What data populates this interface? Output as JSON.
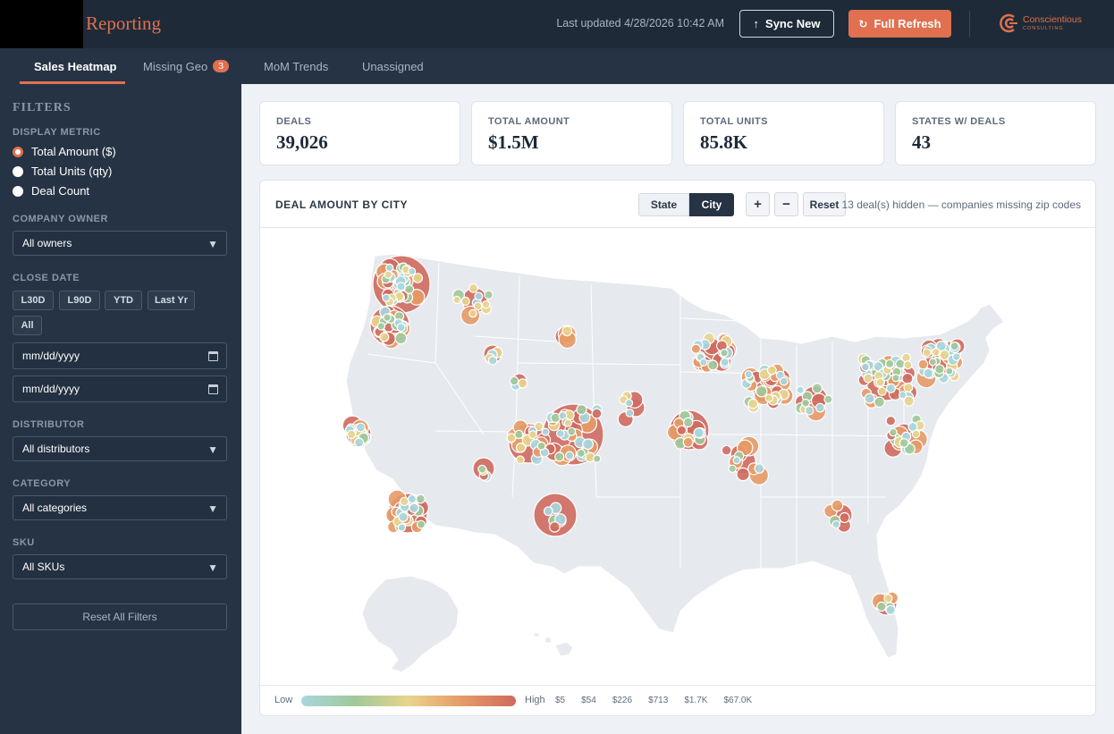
{
  "header": {
    "app_title": "Reporting",
    "last_updated": "Last updated 4/28/2026 10:42 AM",
    "sync_label": "Sync New",
    "sync_icon": "arrow-up-icon",
    "refresh_label": "Full Refresh",
    "refresh_icon": "refresh-icon",
    "brand_name": "Conscientious",
    "brand_sub": "CONSULTING"
  },
  "tabs": [
    {
      "label": "Sales Heatmap",
      "active": true
    },
    {
      "label": "Missing Geo",
      "badge": "3"
    },
    {
      "label": "MoM Trends"
    },
    {
      "label": "Unassigned"
    }
  ],
  "filters": {
    "title": "FILTERS",
    "display_metric_label": "DISPLAY METRIC",
    "metrics": [
      {
        "label": "Total Amount ($)",
        "checked": true
      },
      {
        "label": "Total Units (qty)",
        "checked": false
      },
      {
        "label": "Deal Count",
        "checked": false
      }
    ],
    "company_owner_label": "COMPANY OWNER",
    "company_owner_value": "All owners",
    "close_date_label": "CLOSE DATE",
    "date_chips": [
      "L30D",
      "L90D",
      "YTD",
      "Last Yr",
      "All"
    ],
    "date_from_placeholder": "mm/dd/yyyy",
    "date_to_placeholder": "mm/dd/yyyy",
    "distributor_label": "DISTRIBUTOR",
    "distributor_value": "All distributors",
    "category_label": "CATEGORY",
    "category_value": "All categories",
    "sku_label": "SKU",
    "sku_value": "All SKUs",
    "reset_label": "Reset All Filters"
  },
  "kpis": [
    {
      "label": "DEALS",
      "value": "39,026"
    },
    {
      "label": "TOTAL AMOUNT",
      "value": "$1.5M"
    },
    {
      "label": "TOTAL UNITS",
      "value": "85.8K"
    },
    {
      "label": "STATES W/ DEALS",
      "value": "43"
    }
  ],
  "map": {
    "title": "DEAL AMOUNT BY CITY",
    "view_state": "State",
    "view_city": "City",
    "zoom_in": "+",
    "zoom_out": "−",
    "reset": "Reset",
    "hidden_note": "13 deal(s) hidden — companies missing zip codes",
    "legend_low": "Low",
    "legend_high": "High",
    "legend_ticks": [
      "$5",
      "$54",
      "$226",
      "$713",
      "$1.7K",
      "$67.0K"
    ]
  },
  "colors": {
    "accent": "#e0704f",
    "header_bg": "#1e2a38",
    "sidebar_bg": "#263344",
    "scale": [
      "#a9d6de",
      "#9fc99b",
      "#e8d48c",
      "#e69a66",
      "#cf6a5e"
    ]
  }
}
